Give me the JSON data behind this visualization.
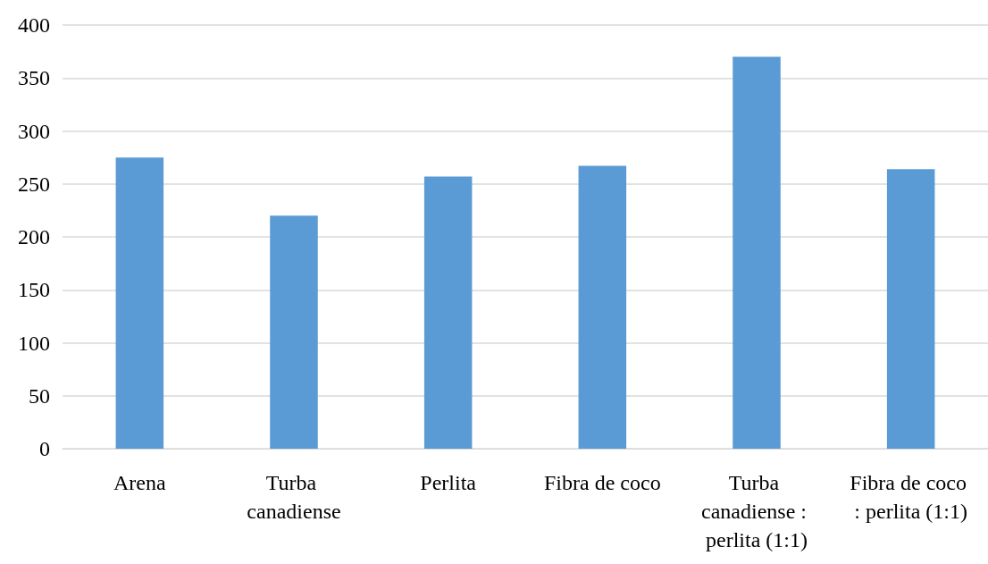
{
  "chart_data": {
    "type": "bar",
    "categories": [
      "Arena",
      "Turba canadiense",
      "Perlita",
      "Fibra de coco",
      "Turba canadiense : perlita (1:1)",
      "Fibra de coco : perlita (1:1)"
    ],
    "values": [
      275,
      220,
      257,
      267,
      370,
      264
    ],
    "color": "#5b9bd5",
    "ylim": [
      0,
      400
    ],
    "yticks": [
      0,
      50,
      100,
      150,
      200,
      250,
      300,
      350,
      400
    ],
    "grid": "y"
  }
}
